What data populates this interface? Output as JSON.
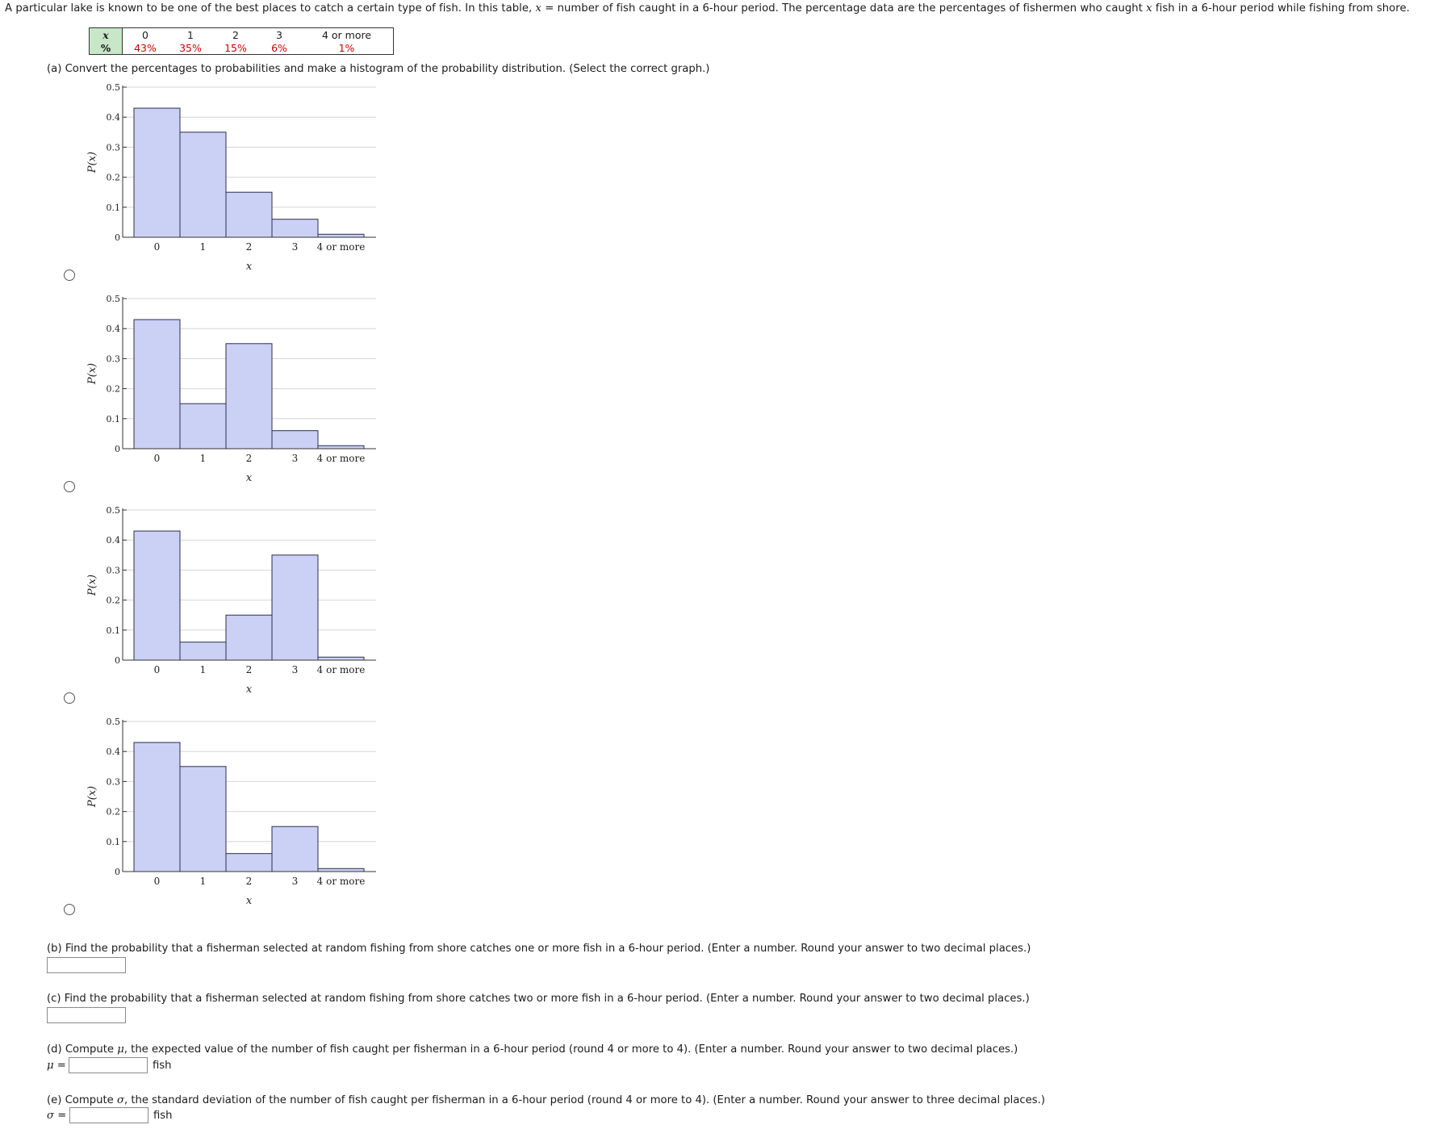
{
  "intro": {
    "text_before_x1": "A particular lake is known to be one of the best places to catch a certain type of fish. In this table, ",
    "var_x": "x",
    "text_after_x1": " = number of fish caught in a 6-hour period. The percentage data are the percentages of fishermen who caught ",
    "text_after_x2": " fish in a 6-hour period while fishing from shore."
  },
  "table": {
    "x_header": "x",
    "pct_header": "%",
    "x_values": [
      "0",
      "1",
      "2",
      "3",
      "4 or more"
    ],
    "percentages": [
      "43%",
      "35%",
      "15%",
      "6%",
      "1%"
    ]
  },
  "part_a": {
    "prompt": "(a) Convert the percentages to probabilities and make a histogram of the probability distribution. (Select the correct graph.)"
  },
  "chart_data": [
    {
      "type": "bar",
      "categories": [
        "0",
        "1",
        "2",
        "3",
        "4 or more"
      ],
      "values": [
        0.43,
        0.35,
        0.15,
        0.06,
        0.01
      ],
      "xlabel": "x",
      "ylabel": "P(x)",
      "ylim": [
        0,
        0.5
      ],
      "yticks": [
        "0",
        "0.1",
        "0.2",
        "0.3",
        "0.4",
        "0.5"
      ],
      "grid": true
    },
    {
      "type": "bar",
      "categories": [
        "0",
        "1",
        "2",
        "3",
        "4 or more"
      ],
      "values": [
        0.43,
        0.15,
        0.35,
        0.06,
        0.01
      ],
      "xlabel": "x",
      "ylabel": "P(x)",
      "ylim": [
        0,
        0.5
      ],
      "yticks": [
        "0",
        "0.1",
        "0.2",
        "0.3",
        "0.4",
        "0.5"
      ],
      "grid": true
    },
    {
      "type": "bar",
      "categories": [
        "0",
        "1",
        "2",
        "3",
        "4 or more"
      ],
      "values": [
        0.43,
        0.06,
        0.15,
        0.35,
        0.01
      ],
      "xlabel": "x",
      "ylabel": "P(x)",
      "ylim": [
        0,
        0.5
      ],
      "yticks": [
        "0",
        "0.1",
        "0.2",
        "0.3",
        "0.4",
        "0.5"
      ],
      "grid": true
    },
    {
      "type": "bar",
      "categories": [
        "0",
        "1",
        "2",
        "3",
        "4 or more"
      ],
      "values": [
        0.43,
        0.35,
        0.06,
        0.15,
        0.01
      ],
      "xlabel": "x",
      "ylabel": "P(x)",
      "ylim": [
        0,
        0.5
      ],
      "yticks": [
        "0",
        "0.1",
        "0.2",
        "0.3",
        "0.4",
        "0.5"
      ],
      "grid": true
    }
  ],
  "colors": {
    "bar_fill": "#cbd1f5",
    "bar_stroke": "#2b2f4a",
    "grid": "#d6d6d6",
    "pct_text": "#cc0000",
    "table_header_bg": "#c8e6c8"
  },
  "part_b": {
    "prompt": "(b) Find the probability that a fisherman selected at random fishing from shore catches one or more fish in a 6-hour period. (Enter a number. Round your answer to two decimal places.)",
    "value": ""
  },
  "part_c": {
    "prompt": "(c) Find the probability that a fisherman selected at random fishing from shore catches two or more fish in a 6-hour period. (Enter a number. Round your answer to two decimal places.)",
    "value": ""
  },
  "part_d": {
    "prompt_before": "(d) Compute ",
    "symbol": "μ",
    "prompt_after": ", the expected value of the number of fish caught per fisherman in a 6-hour period (round 4 or more to 4). (Enter a number. Round your answer to two decimal places.)",
    "equals": "=",
    "value": "",
    "unit": "fish"
  },
  "part_e": {
    "prompt_before": "(e) Compute ",
    "symbol": "σ",
    "prompt_after": ", the standard deviation of the number of fish caught per fisherman in a 6-hour period (round 4 or more to 4). (Enter a number. Round your answer to three decimal places.)",
    "equals": "=",
    "value": "",
    "unit": "fish"
  }
}
